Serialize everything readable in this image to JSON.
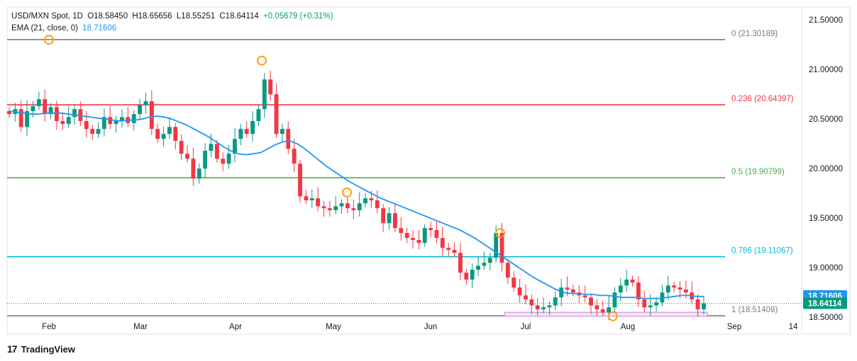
{
  "header": {
    "symbol": "USD/MXN Spot, 1D",
    "open": "O18.58450",
    "high": "H18.65656",
    "low": "L18.55251",
    "close": "C18.64114",
    "change": "+0.05679 (+0.31%)",
    "ema_label": "EMA (21, close, 0)",
    "ema_value": "18.71606"
  },
  "brand": "TradingView",
  "colors": {
    "up": "#089981",
    "down": "#f23645",
    "ema": "#2196f3",
    "fib_0": "#787b86",
    "fib_0236": "#f23645",
    "fib_05": "#4caf50",
    "fib_0786": "#00bcd4",
    "fib_1": "#787b86",
    "zone": "#ce93d8",
    "marker": "#ff9800"
  },
  "chart_data": {
    "type": "candlestick",
    "yaxis_ticks": [
      "21.50000",
      "21.00000",
      "20.50000",
      "20.00000",
      "19.50000",
      "19.00000",
      "18.50000"
    ],
    "ylim": [
      18.33,
      21.63
    ],
    "xaxis_ticks": [
      "Feb",
      "Mar",
      "Apr",
      "May",
      "Jun",
      "Jul",
      "Aug",
      "Sep",
      "14"
    ],
    "price_labels": {
      "ema": "18.71606",
      "last": "18.64114"
    },
    "fib_levels": [
      {
        "label": "0 (21.30189)",
        "value": 21.30189
      },
      {
        "label": "0.236 (20.64397)",
        "value": 20.64397
      },
      {
        "label": "0.5 (19.90799)",
        "value": 19.90799
      },
      {
        "label": "0.786 (19.11067)",
        "value": 19.11067
      },
      {
        "label": "1 (18.51408)",
        "value": 18.51408
      }
    ],
    "support_zone": [
      18.51,
      18.55
    ],
    "swing_markers": [
      {
        "date": "Feb 1",
        "value": 21.3
      },
      {
        "date": "Apr 8",
        "value": 21.09
      },
      {
        "date": "May 2",
        "value": 19.76
      },
      {
        "date": "Jun 21",
        "value": 19.35
      },
      {
        "date": "Jul 29",
        "value": 18.51
      }
    ],
    "series": [
      {
        "name": "USD/MXN",
        "ohlc_close_path": [
          20.55,
          20.6,
          20.42,
          20.58,
          20.63,
          20.7,
          20.55,
          20.62,
          20.48,
          20.45,
          20.52,
          20.6,
          20.48,
          20.4,
          20.35,
          20.4,
          20.52,
          20.45,
          20.48,
          20.52,
          20.46,
          20.55,
          20.64,
          20.68,
          20.4,
          20.3,
          20.35,
          20.42,
          20.28,
          20.15,
          20.1,
          19.9,
          20.0,
          20.18,
          20.25,
          20.1,
          20.05,
          20.15,
          20.3,
          20.4,
          20.35,
          20.48,
          20.6,
          20.9,
          20.75,
          20.35,
          20.4,
          20.2,
          20.05,
          19.72,
          19.68,
          19.7,
          19.62,
          19.6,
          19.58,
          19.62,
          19.65,
          19.6,
          19.58,
          19.65,
          19.7,
          19.68,
          19.6,
          19.45,
          19.55,
          19.4,
          19.35,
          19.3,
          19.28,
          19.25,
          19.4,
          19.38,
          19.3,
          19.2,
          19.18,
          19.15,
          18.95,
          18.88,
          18.98,
          19.02,
          19.05,
          19.1,
          19.35,
          19.05,
          18.9,
          18.8,
          18.72,
          18.68,
          18.62,
          18.58,
          18.6,
          18.62,
          18.7,
          18.8,
          18.78,
          18.75,
          18.72,
          18.7,
          18.62,
          18.58,
          18.55,
          18.6,
          18.75,
          18.82,
          18.88,
          18.85,
          18.68,
          18.6,
          18.62,
          18.65,
          18.75,
          18.82,
          18.8,
          18.78,
          18.75,
          18.68,
          18.58,
          18.64
        ]
      },
      {
        "name": "EMA (21, close, 0)",
        "values": [
          20.58,
          20.57,
          20.56,
          20.55,
          20.55,
          20.56,
          20.56,
          20.56,
          20.55,
          20.54,
          20.53,
          20.52,
          20.51,
          20.5,
          20.49,
          20.48,
          20.49,
          20.49,
          20.5,
          20.52,
          20.53,
          20.52,
          20.5,
          20.47,
          20.44,
          20.4,
          20.36,
          20.32,
          20.27,
          20.22,
          20.18,
          20.15,
          20.14,
          20.15,
          20.16,
          20.2,
          20.24,
          20.27,
          20.28,
          20.25,
          20.2,
          20.14,
          20.08,
          20.02,
          19.97,
          19.92,
          19.87,
          19.83,
          19.79,
          19.75,
          19.71,
          19.68,
          19.65,
          19.62,
          19.59,
          19.56,
          19.53,
          19.5,
          19.47,
          19.44,
          19.41,
          19.38,
          19.34,
          19.3,
          19.25,
          19.2,
          19.15,
          19.1,
          19.05,
          19.0,
          18.95,
          18.9,
          18.86,
          18.82,
          18.78,
          18.75,
          18.74,
          18.74,
          18.73,
          18.73,
          18.72,
          18.72,
          18.71,
          18.7,
          18.7,
          18.7,
          18.69,
          18.69,
          18.69,
          18.7,
          18.71,
          18.72,
          18.72,
          18.71,
          18.71
        ]
      }
    ]
  }
}
